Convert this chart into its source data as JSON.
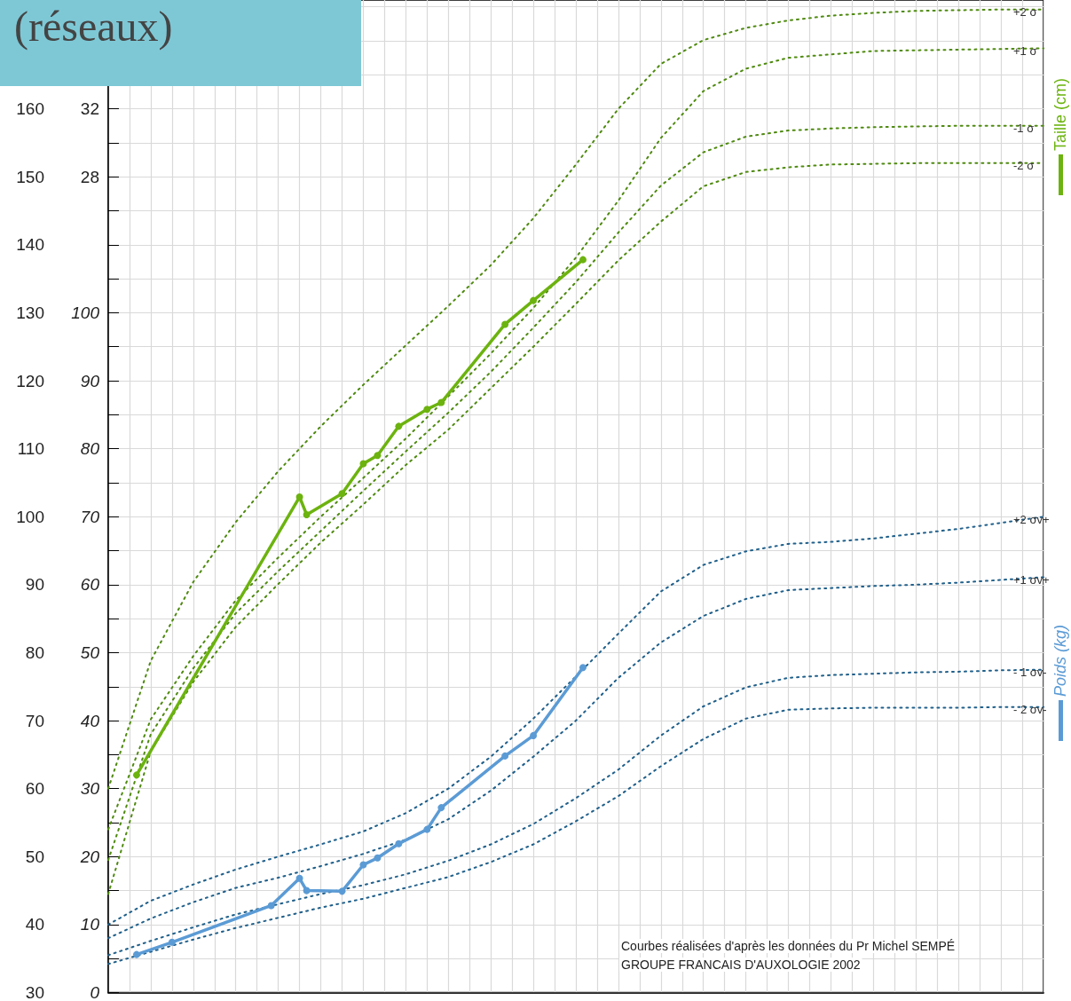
{
  "chart_data": {
    "type": "line",
    "title": "(réseaux)",
    "annotations": [
      "Courbes réalisées d'après les données du Pr Michel SEMPÉ",
      "GROUPE FRANCAIS D'AUXOLOGIE 2002"
    ],
    "categories": [
      null,
      null,
      null,
      null,
      null,
      null,
      null,
      null,
      null,
      null,
      null,
      null,
      null,
      null,
      null,
      null,
      null,
      null,
      null,
      null,
      null,
      null,
      null,
      null,
      null,
      null,
      null,
      null,
      null,
      null,
      null,
      null,
      null,
      null,
      null,
      null,
      null,
      null,
      null,
      null,
      null,
      null,
      null,
      null,
      null,
      null,
      null,
      null,
      null,
      null,
      null,
      null,
      null,
      null,
      null,
      null,
      null,
      null,
      null,
      null,
      null,
      null,
      null,
      null,
      null,
      null,
      null,
      null,
      null,
      null,
      null,
      null,
      null,
      null,
      null,
      null,
      null,
      null,
      null,
      null,
      null,
      null,
      null,
      null,
      null,
      null,
      null,
      null,
      null,
      null,
      null,
      null,
      null,
      null,
      null,
      null,
      null,
      null,
      null,
      null,
      null,
      null,
      null,
      null,
      null,
      null,
      null,
      null,
      null,
      null,
      null,
      null,
      null,
      null,
      null,
      null,
      null,
      null,
      null,
      null,
      null,
      null,
      null,
      null,
      null,
      null,
      null,
      null,
      null,
      null,
      null,
      null,
      null
    ],
    "ylim": [
      30,
      176
    ],
    "yticks": [
      30,
      {
        "value": 35,
        "label": null
      },
      40,
      {
        "value": 45,
        "label": null
      },
      50,
      {
        "value": 55,
        "label": null
      },
      60,
      {
        "value": 65,
        "label": null
      },
      70,
      {
        "value": 75,
        "label": null
      },
      80,
      {
        "value": 85,
        "label": null
      },
      90,
      {
        "value": 95,
        "label": null
      },
      100,
      {
        "value": 105,
        "label": null
      },
      110,
      {
        "value": 115,
        "label": null
      },
      120,
      {
        "value": 125,
        "label": null
      },
      130,
      {
        "value": 135,
        "label": null
      },
      140,
      {
        "value": 145,
        "label": null
      },
      150,
      {
        "value": 155,
        "label": null
      },
      160,
      {
        "value": 165,
        "label": null
      },
      {
        "value": 170,
        "label": null
      },
      {
        "value": 175,
        "label": null
      }
    ],
    "y2lim": [
      0,
      146
    ],
    "y2ticks": [
      0,
      10,
      20,
      30,
      40,
      50,
      60,
      70,
      80,
      90,
      100
    ],
    "y3lim": [
      -20,
      38.4
    ],
    "y3ticks": [
      28,
      32
    ],
    "tick_labels": "y",
    "grid": true,
    "legend": "right",
    "series": [
      {
        "name": "+2 σ",
        "color": "#4f8a10",
        "line_style": "dotted",
        "marker": "none",
        "values": [
          60,
          null,
          null,
          null,
          null,
          null,
          78.8,
          null,
          null,
          null,
          null,
          null,
          90.4,
          null,
          null,
          null,
          null,
          null,
          99.2,
          null,
          null,
          null,
          null,
          null,
          106.7,
          null,
          null,
          null,
          null,
          null,
          113.3,
          null,
          null,
          null,
          null,
          null,
          119.4,
          null,
          null,
          null,
          null,
          null,
          125.2,
          null,
          null,
          null,
          null,
          null,
          131,
          null,
          null,
          null,
          null,
          null,
          137,
          null,
          null,
          null,
          null,
          null,
          143.9,
          null,
          null,
          null,
          null,
          null,
          151.8,
          null,
          null,
          null,
          null,
          null,
          160,
          null,
          null,
          null,
          null,
          null,
          166.6,
          null,
          null,
          null,
          null,
          null,
          170.1,
          null,
          null,
          null,
          null,
          null,
          171.9,
          null,
          null,
          null,
          null,
          null,
          173,
          null,
          null,
          null,
          null,
          null,
          173.7,
          null,
          null,
          null,
          null,
          null,
          174.1,
          null,
          null,
          null,
          null,
          null,
          174.4,
          null,
          null,
          null,
          null,
          null,
          174.5,
          null,
          null,
          null,
          null,
          null,
          174.6,
          null,
          null,
          null,
          null,
          null,
          174.6
        ]
      },
      {
        "name": "+1 σ",
        "color": "#4f8a10",
        "line_style": "dotted",
        "marker": "none",
        "values": [
          54,
          null,
          null,
          null,
          null,
          null,
          70.2,
          null,
          null,
          null,
          null,
          null,
          79.5,
          null,
          null,
          null,
          null,
          null,
          87.7,
          null,
          null,
          null,
          null,
          null,
          94,
          null,
          null,
          null,
          null,
          null,
          100,
          null,
          null,
          null,
          null,
          null,
          105.7,
          null,
          null,
          null,
          null,
          null,
          111.5,
          null,
          null,
          null,
          null,
          null,
          117.7,
          null,
          null,
          null,
          null,
          null,
          124,
          null,
          null,
          null,
          null,
          null,
          130.7,
          null,
          null,
          null,
          null,
          null,
          138.1,
          null,
          null,
          null,
          null,
          null,
          146.5,
          null,
          null,
          null,
          null,
          null,
          155.7,
          null,
          null,
          null,
          null,
          null,
          162.6,
          null,
          null,
          null,
          null,
          null,
          165.9,
          null,
          null,
          null,
          null,
          null,
          167.5,
          null,
          null,
          null,
          null,
          null,
          168,
          null,
          null,
          null,
          null,
          null,
          168.5,
          null,
          null,
          null,
          null,
          null,
          168.6,
          null,
          null,
          null,
          null,
          null,
          168.7,
          null,
          null,
          null,
          null,
          null,
          168.8,
          null,
          null,
          null,
          null,
          null,
          168.9
        ]
      },
      {
        "name": "-1 σ",
        "color": "#4f8a10",
        "line_style": "dotted",
        "marker": "none",
        "values": [
          49.5,
          null,
          null,
          null,
          null,
          null,
          68,
          null,
          null,
          null,
          null,
          null,
          77.7,
          null,
          null,
          null,
          null,
          null,
          85.8,
          null,
          null,
          null,
          null,
          null,
          92,
          null,
          null,
          null,
          null,
          null,
          97.9,
          null,
          null,
          null,
          null,
          null,
          103.8,
          null,
          null,
          null,
          null,
          null,
          109.6,
          null,
          null,
          null,
          null,
          null,
          115.3,
          null,
          null,
          null,
          null,
          null,
          121.3,
          null,
          null,
          null,
          null,
          null,
          127.8,
          null,
          null,
          null,
          null,
          null,
          134.5,
          null,
          null,
          null,
          null,
          null,
          141.8,
          null,
          null,
          null,
          null,
          null,
          148.7,
          null,
          null,
          null,
          null,
          null,
          153.6,
          null,
          null,
          null,
          null,
          null,
          155.9,
          null,
          null,
          null,
          null,
          null,
          156.8,
          null,
          null,
          null,
          null,
          null,
          157.1,
          null,
          null,
          null,
          null,
          null,
          157.3,
          null,
          null,
          null,
          null,
          null,
          157.4,
          null,
          null,
          null,
          null,
          null,
          157.5,
          null,
          null,
          null,
          null,
          null,
          157.5,
          null,
          null,
          null,
          null,
          null,
          157.5
        ]
      },
      {
        "name": "-2 σ",
        "color": "#4f8a10",
        "line_style": "dotted",
        "marker": "none",
        "values": [
          44.5,
          null,
          null,
          null,
          null,
          null,
          65.5,
          null,
          null,
          null,
          null,
          null,
          75.7,
          null,
          null,
          null,
          null,
          null,
          83.8,
          null,
          null,
          null,
          null,
          null,
          90.1,
          null,
          null,
          null,
          null,
          null,
          96.2,
          null,
          null,
          null,
          null,
          null,
          101.8,
          null,
          null,
          null,
          null,
          null,
          107.6,
          null,
          null,
          null,
          null,
          null,
          112.8,
          null,
          null,
          null,
          null,
          null,
          118.9,
          null,
          null,
          null,
          null,
          null,
          125,
          null,
          null,
          null,
          null,
          null,
          131.3,
          null,
          null,
          null,
          null,
          null,
          137.7,
          null,
          null,
          null,
          null,
          null,
          143.4,
          null,
          null,
          null,
          null,
          null,
          148.6,
          null,
          null,
          null,
          null,
          null,
          150.7,
          null,
          null,
          null,
          null,
          null,
          151.4,
          null,
          null,
          null,
          null,
          null,
          151.8,
          null,
          null,
          null,
          null,
          null,
          151.9,
          null,
          null,
          null,
          null,
          null,
          152,
          null,
          null,
          null,
          null,
          null,
          152,
          null,
          null,
          null,
          null,
          null,
          152,
          null,
          null,
          null,
          null,
          null,
          152
        ]
      },
      {
        "name": "+2 σv+",
        "color": "#1f5f8a",
        "line_style": "dotted",
        "marker": "none",
        "axis": "y2",
        "values": [
          10,
          null,
          null,
          null,
          null,
          null,
          13.5,
          null,
          null,
          null,
          null,
          null,
          15.9,
          null,
          null,
          null,
          null,
          null,
          18.1,
          null,
          null,
          null,
          null,
          null,
          20,
          null,
          null,
          null,
          null,
          null,
          21.8,
          null,
          null,
          null,
          null,
          null,
          23.7,
          null,
          null,
          null,
          null,
          null,
          26.4,
          null,
          null,
          null,
          null,
          null,
          30,
          null,
          null,
          null,
          null,
          null,
          34.7,
          null,
          null,
          null,
          null,
          null,
          40.3,
          null,
          null,
          null,
          null,
          null,
          46.5,
          null,
          null,
          null,
          null,
          null,
          52.8,
          null,
          null,
          null,
          null,
          null,
          59,
          null,
          null,
          null,
          null,
          null,
          62.9,
          null,
          null,
          null,
          null,
          null,
          64.9,
          null,
          null,
          null,
          null,
          null,
          66,
          null,
          null,
          null,
          null,
          null,
          66.3,
          null,
          null,
          null,
          null,
          null,
          66.8,
          null,
          null,
          null,
          null,
          null,
          67.5,
          null,
          null,
          null,
          null,
          null,
          68.2,
          null,
          null,
          null,
          null,
          null,
          69.1,
          null,
          null,
          null,
          null,
          null,
          70
        ]
      },
      {
        "name": "+1 σv+",
        "color": "#1f5f8a",
        "line_style": "dotted",
        "marker": "none",
        "axis": "y2",
        "values": [
          8,
          null,
          null,
          null,
          null,
          null,
          10.9,
          null,
          null,
          null,
          null,
          null,
          13.3,
          null,
          null,
          null,
          null,
          null,
          15.4,
          null,
          null,
          null,
          null,
          null,
          16.9,
          null,
          null,
          null,
          null,
          null,
          18.6,
          null,
          null,
          null,
          null,
          null,
          20.4,
          null,
          null,
          null,
          null,
          null,
          22.5,
          null,
          null,
          null,
          null,
          null,
          25.5,
          null,
          null,
          null,
          null,
          null,
          29.7,
          null,
          null,
          null,
          null,
          null,
          34.7,
          null,
          null,
          null,
          null,
          null,
          40,
          null,
          null,
          null,
          null,
          null,
          46.3,
          null,
          null,
          null,
          null,
          null,
          51.5,
          null,
          null,
          null,
          null,
          null,
          55.4,
          null,
          null,
          null,
          null,
          null,
          57.9,
          null,
          null,
          null,
          null,
          null,
          59.2,
          null,
          null,
          null,
          null,
          null,
          59.5,
          null,
          null,
          null,
          null,
          null,
          59.8,
          null,
          null,
          null,
          null,
          null,
          60,
          null,
          null,
          null,
          null,
          null,
          60.3,
          null,
          null,
          null,
          null,
          null,
          60.7,
          null,
          null,
          null,
          null,
          null,
          61.1
        ]
      },
      {
        "name": "- 1 σv-",
        "color": "#1f5f8a",
        "line_style": "dotted",
        "marker": "none",
        "axis": "y2",
        "values": [
          5.5,
          null,
          null,
          null,
          null,
          null,
          7.6,
          null,
          null,
          null,
          null,
          null,
          9.6,
          null,
          null,
          null,
          null,
          null,
          11.5,
          null,
          null,
          null,
          null,
          null,
          13,
          null,
          null,
          null,
          null,
          null,
          14.5,
          null,
          null,
          null,
          null,
          null,
          15.8,
          null,
          null,
          null,
          null,
          null,
          17.4,
          null,
          null,
          null,
          null,
          null,
          19.4,
          null,
          null,
          null,
          null,
          null,
          21.8,
          null,
          null,
          null,
          null,
          null,
          24.8,
          null,
          null,
          null,
          null,
          null,
          28.6,
          null,
          null,
          null,
          null,
          null,
          32.8,
          null,
          null,
          null,
          null,
          null,
          37.8,
          null,
          null,
          null,
          null,
          null,
          42.1,
          null,
          null,
          null,
          null,
          null,
          44.9,
          null,
          null,
          null,
          null,
          null,
          46.3,
          null,
          null,
          null,
          null,
          null,
          46.7,
          null,
          null,
          null,
          null,
          null,
          46.9,
          null,
          null,
          null,
          null,
          null,
          47.1,
          null,
          null,
          null,
          null,
          null,
          47.2,
          null,
          null,
          null,
          null,
          null,
          47.4,
          null,
          null,
          null,
          null,
          null,
          47.5
        ]
      },
      {
        "name": "- 2 σv-",
        "color": "#1f5f8a",
        "line_style": "dotted",
        "marker": "none",
        "axis": "y2",
        "values": [
          4.2,
          null,
          null,
          null,
          null,
          null,
          6,
          null,
          null,
          null,
          null,
          null,
          7.8,
          null,
          null,
          null,
          null,
          null,
          9.5,
          null,
          null,
          null,
          null,
          null,
          11,
          null,
          null,
          null,
          null,
          null,
          12.5,
          null,
          null,
          null,
          null,
          null,
          13.8,
          null,
          null,
          null,
          null,
          null,
          15.4,
          null,
          null,
          null,
          null,
          null,
          17,
          null,
          null,
          null,
          null,
          null,
          19.2,
          null,
          null,
          null,
          null,
          null,
          21.8,
          null,
          null,
          null,
          null,
          null,
          25.2,
          null,
          null,
          null,
          null,
          null,
          28.9,
          null,
          null,
          null,
          null,
          null,
          33.3,
          null,
          null,
          null,
          null,
          null,
          37.3,
          null,
          null,
          null,
          null,
          null,
          40.3,
          null,
          null,
          null,
          null,
          null,
          41.6,
          null,
          null,
          null,
          null,
          null,
          41.8,
          null,
          null,
          null,
          null,
          null,
          41.9,
          null,
          null,
          null,
          null,
          null,
          41.9,
          null,
          null,
          null,
          null,
          null,
          41.9,
          null,
          null,
          null,
          null,
          null,
          42,
          null,
          null,
          null,
          null,
          null,
          42
        ]
      },
      {
        "name": "Taille (cm)",
        "color": "#6cb30f",
        "line_style": "solid",
        "marker": "circle",
        "values": [
          null,
          null,
          null,
          null,
          62,
          null,
          null,
          null,
          null,
          null,
          null,
          null,
          null,
          null,
          null,
          null,
          null,
          null,
          null,
          null,
          null,
          null,
          null,
          null,
          null,
          null,
          null,
          102.9,
          100.3,
          null,
          null,
          null,
          null,
          103.4,
          null,
          null,
          107.8,
          null,
          109,
          null,
          null,
          113.3,
          null,
          null,
          null,
          115.8,
          null,
          116.8,
          null,
          null,
          null,
          null,
          null,
          null,
          null,
          null,
          128.3,
          null,
          null,
          null,
          131.8,
          null,
          null,
          null,
          null,
          null,
          null,
          137.8,
          null,
          null,
          null,
          null,
          null,
          null,
          null,
          null,
          null,
          null,
          null,
          null,
          null,
          null,
          null,
          null,
          null,
          null,
          null,
          null,
          null,
          null,
          null,
          null,
          null,
          null,
          null,
          null,
          null,
          null,
          null,
          null,
          null,
          null,
          null,
          null,
          null,
          null,
          null,
          null,
          null,
          null,
          null,
          null,
          null,
          null,
          null,
          null,
          null,
          null,
          null,
          null,
          null,
          null,
          null,
          null,
          null,
          null,
          null,
          null,
          null,
          null,
          null,
          null,
          null
        ]
      },
      {
        "name": "Poids (kg)",
        "color": "#5b9bd5",
        "line_style": "solid",
        "marker": "circle",
        "axis": "y2",
        "values": [
          null,
          null,
          null,
          null,
          5.6,
          null,
          null,
          null,
          null,
          7.4,
          null,
          null,
          null,
          null,
          null,
          null,
          null,
          null,
          null,
          null,
          null,
          null,
          null,
          12.8,
          null,
          null,
          null,
          16.8,
          15,
          null,
          null,
          null,
          null,
          14.9,
          null,
          null,
          18.8,
          null,
          19.8,
          null,
          null,
          21.9,
          null,
          null,
          null,
          24,
          null,
          27.2,
          null,
          null,
          null,
          null,
          null,
          null,
          null,
          null,
          34.8,
          null,
          null,
          null,
          37.8,
          null,
          null,
          null,
          null,
          null,
          null,
          47.8,
          null,
          null,
          null,
          null,
          null,
          null,
          null,
          null,
          null,
          null,
          null,
          null,
          null,
          null,
          null,
          null,
          null,
          null,
          null,
          null,
          null,
          null,
          null,
          null,
          null,
          null,
          null,
          null,
          null,
          null,
          null,
          null,
          null,
          null,
          null,
          null,
          null,
          null,
          null,
          null,
          null,
          null,
          null,
          null,
          null,
          null,
          null,
          null,
          null,
          null,
          null,
          null,
          null,
          null,
          null,
          null,
          null,
          null,
          null,
          null,
          null,
          null,
          null,
          null,
          null
        ]
      }
    ]
  }
}
